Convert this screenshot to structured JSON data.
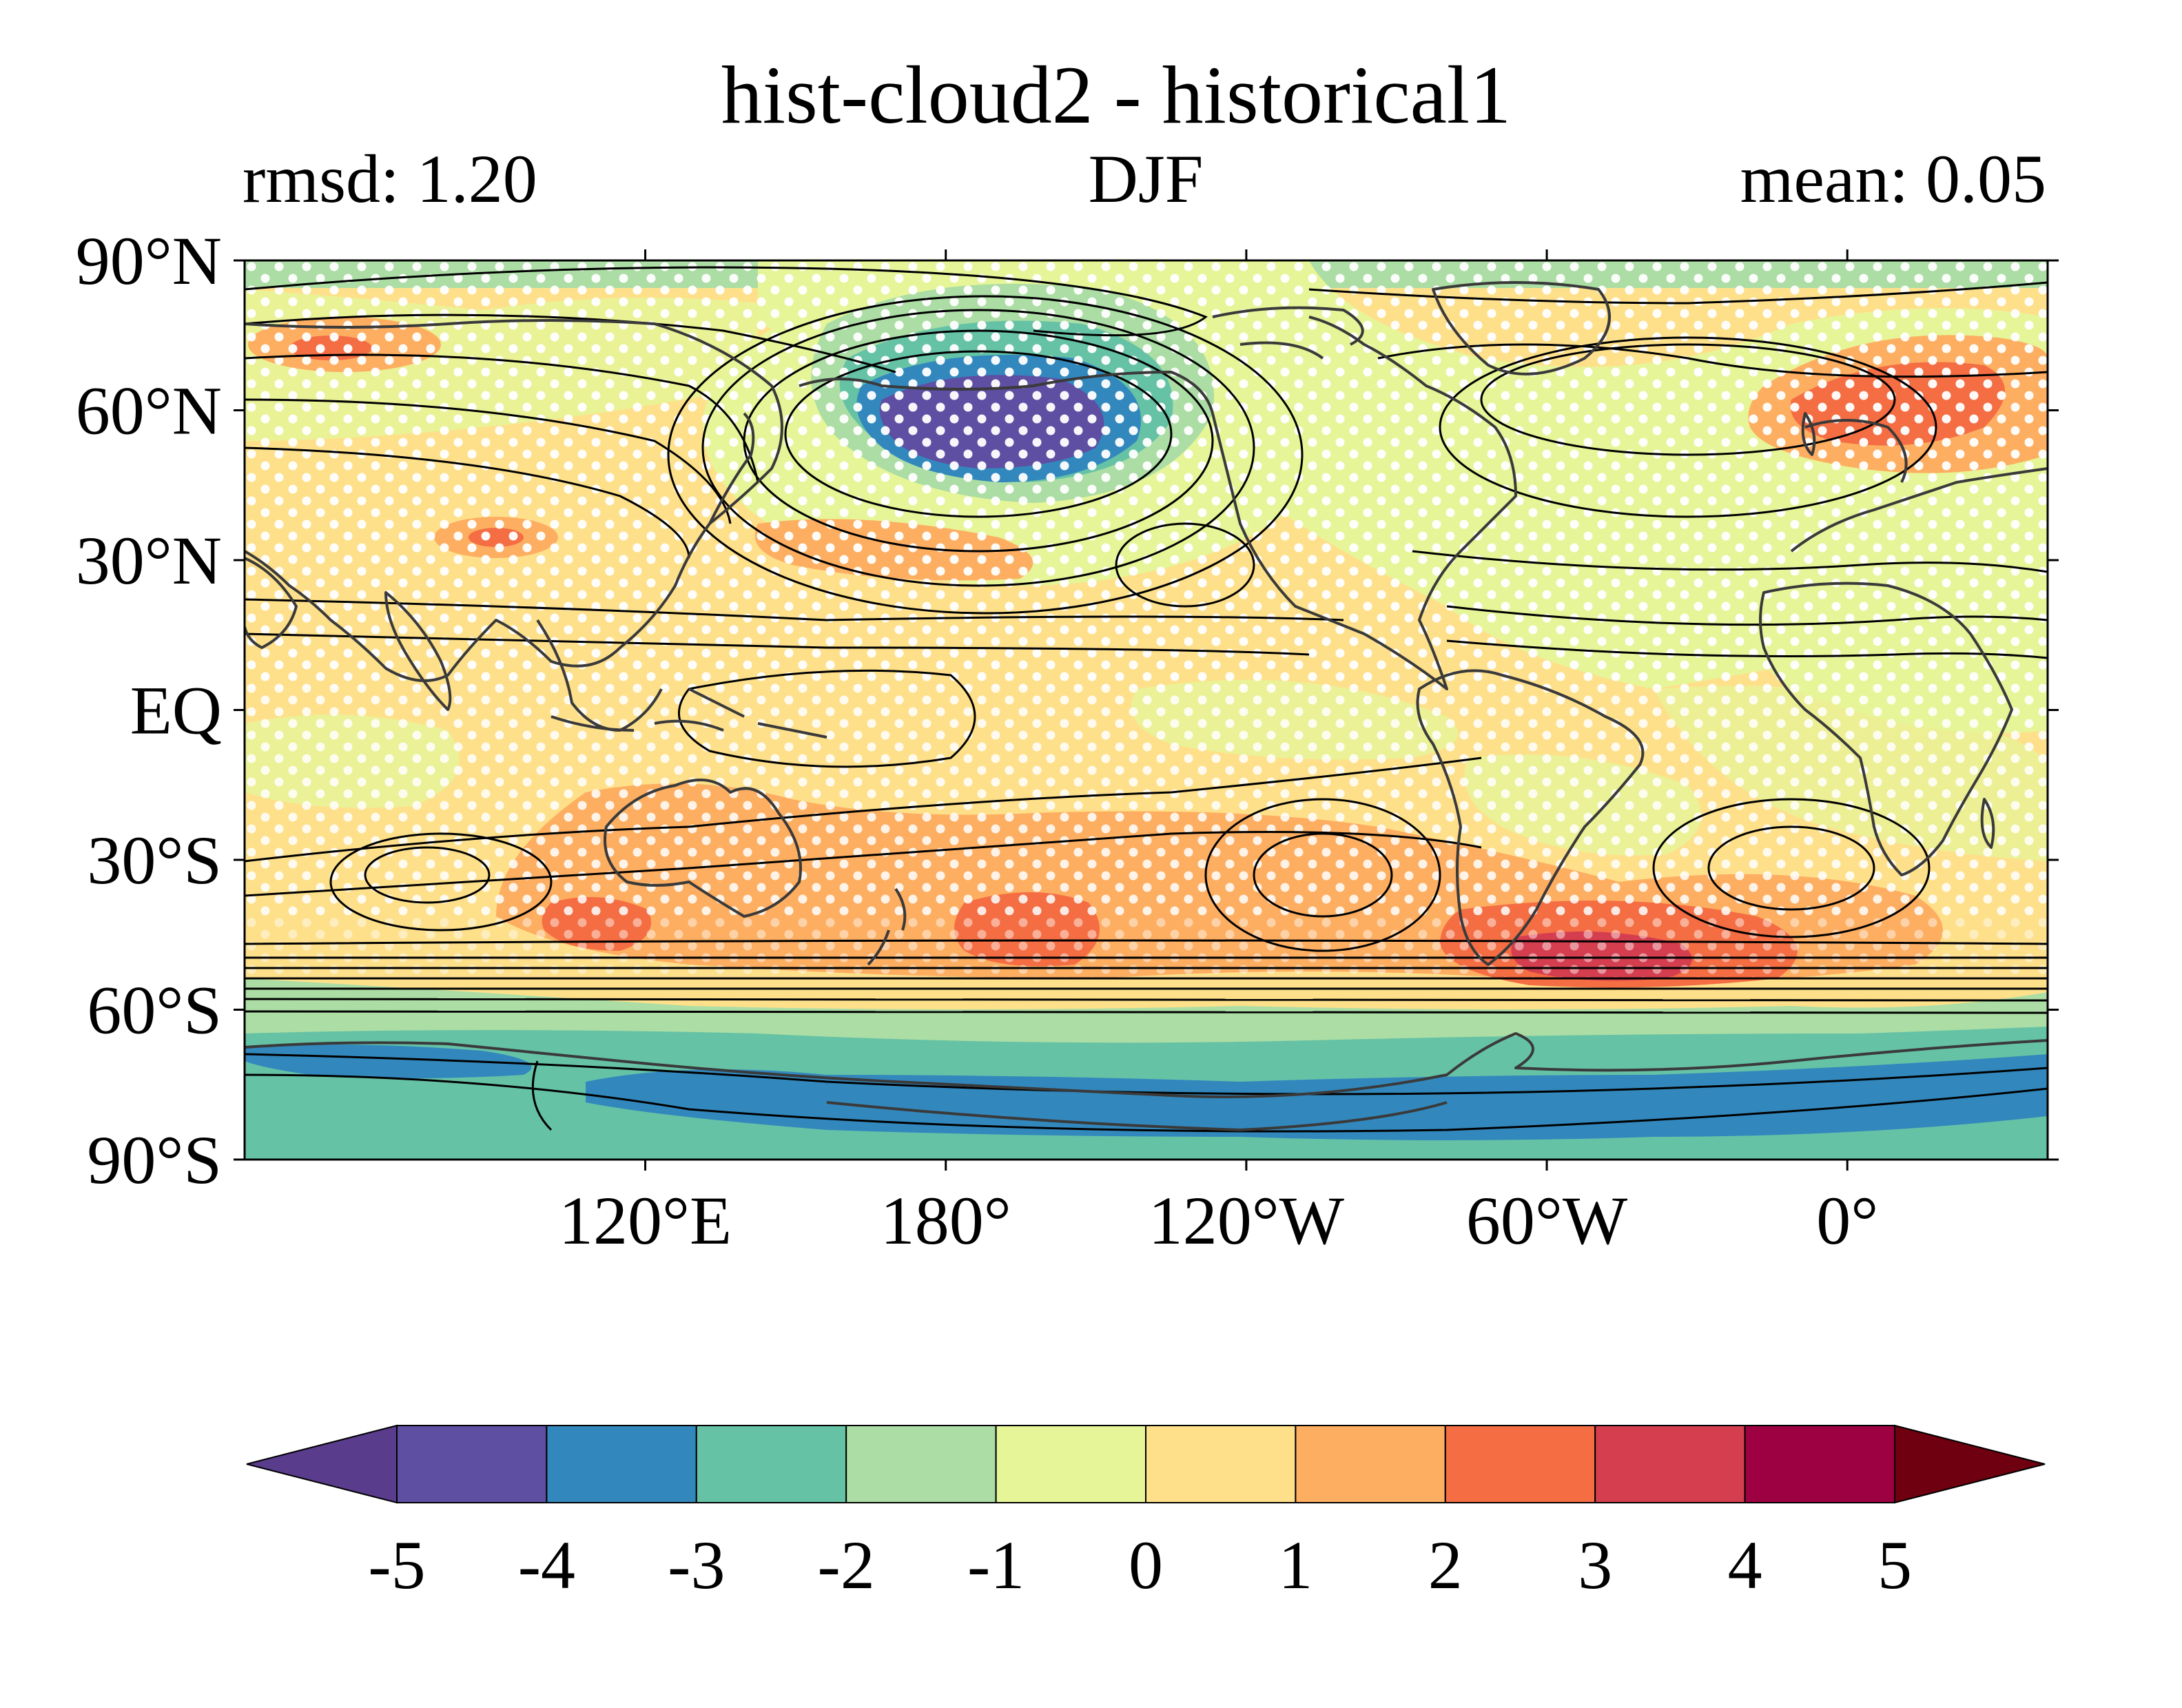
{
  "chart_data": {
    "type": "heatmap",
    "title": "hist-cloud2 - historical1",
    "subtitle_left": "rmsd: 1.20",
    "subtitle_center": "DJF",
    "subtitle_right": "mean: 0.05",
    "x_ticks": [
      {
        "value": 120,
        "label": "120°E"
      },
      {
        "value": 180,
        "label": "180°"
      },
      {
        "value": 240,
        "label": "120°W"
      },
      {
        "value": 300,
        "label": "60°W"
      },
      {
        "value": 360,
        "label": "0°"
      }
    ],
    "y_ticks": [
      {
        "value": 90,
        "label": "90°N"
      },
      {
        "value": 60,
        "label": "60°N"
      },
      {
        "value": 30,
        "label": "30°N"
      },
      {
        "value": 0,
        "label": "EQ"
      },
      {
        "value": -30,
        "label": "30°S"
      },
      {
        "value": -60,
        "label": "60°S"
      },
      {
        "value": -90,
        "label": "90°S"
      }
    ],
    "xlim": [
      40,
      400
    ],
    "ylim": [
      -90,
      90
    ],
    "colorbar": {
      "levels": [
        -5,
        -4,
        -3,
        -2,
        -1,
        0,
        1,
        2,
        3,
        4,
        5
      ],
      "labels": [
        "-5",
        "-4",
        "-3",
        "-2",
        "-1",
        "0",
        "1",
        "2",
        "3",
        "4",
        "5"
      ],
      "colors": [
        "#5e4fa2",
        "#3288bd",
        "#66c2a5",
        "#abdda4",
        "#e6f598",
        "#fee08b",
        "#fdae61",
        "#f46d43",
        "#d53e4f",
        "#9e0142"
      ],
      "under_color": "#5a3c8c",
      "over_color": "#6e0010",
      "extend": "both"
    },
    "features": [
      {
        "name": "north-pacific-negative-anomaly",
        "lon": 190,
        "lat": 57,
        "value": -5
      },
      {
        "name": "north-atlantic-positive-anomaly",
        "lon": 360,
        "lat": 63,
        "value": 3
      },
      {
        "name": "south-atlantic-positive-anomaly",
        "lon": 315,
        "lat": -50,
        "value": 4
      },
      {
        "name": "southern-ocean-positive-band",
        "lon": 200,
        "lat": -45,
        "value": 3
      },
      {
        "name": "antarctic-negative-band",
        "lon": 230,
        "lat": -80,
        "value": -4
      }
    ]
  },
  "colors": {
    "background": "#ffffff",
    "coastline": "#3a3a3a",
    "contour": "#000000",
    "stipple": "#ffffff"
  }
}
